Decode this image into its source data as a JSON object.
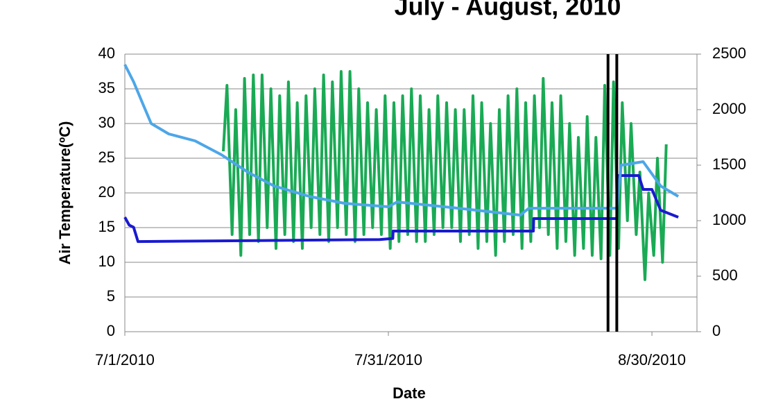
{
  "chart_data": {
    "type": "line",
    "title": "July - August, 2010",
    "xlabel": "Date",
    "ylabel": "Air Temperature(ºC)",
    "xlim": [
      "2010-07-01T00:00",
      "2010-09-04T03:00"
    ],
    "xticks": [
      {
        "value": "2010-07-01T00:00",
        "label": "7/1/2010"
      },
      {
        "value": "2010-07-31T00:00",
        "label": "7/31/2010"
      },
      {
        "value": "2010-08-30T00:00",
        "label": "8/30/2010"
      }
    ],
    "ylim": [
      0,
      40
    ],
    "yticks": [
      0,
      5,
      10,
      15,
      20,
      25,
      30,
      35,
      40
    ],
    "y2lim": [
      0,
      2500
    ],
    "y2ticks": [
      0,
      500,
      1000,
      1500,
      2000,
      2500
    ],
    "grid": true,
    "vlines": {
      "color": "#000000",
      "x": [
        "2010-08-25T00:00",
        "2010-08-26T00:00"
      ]
    },
    "series": [
      {
        "color": "#1aaa55",
        "axis": "y",
        "x": [
          "2010-07-12T05:00",
          "2010-07-12T15:00",
          "2010-07-13T05:00",
          "2010-07-13T15:00",
          "2010-07-14T05:00",
          "2010-07-14T15:00",
          "2010-07-15T05:00",
          "2010-07-15T15:00",
          "2010-07-16T05:00",
          "2010-07-16T15:00",
          "2010-07-17T05:00",
          "2010-07-17T15:00",
          "2010-07-18T05:00",
          "2010-07-18T15:00",
          "2010-07-19T05:00",
          "2010-07-19T15:00",
          "2010-07-20T05:00",
          "2010-07-20T15:00",
          "2010-07-21T05:00",
          "2010-07-21T15:00",
          "2010-07-22T05:00",
          "2010-07-22T15:00",
          "2010-07-23T05:00",
          "2010-07-23T15:00",
          "2010-07-24T05:00",
          "2010-07-24T15:00",
          "2010-07-25T05:00",
          "2010-07-25T15:00",
          "2010-07-26T05:00",
          "2010-07-26T15:00",
          "2010-07-27T05:00",
          "2010-07-27T15:00",
          "2010-07-28T05:00",
          "2010-07-28T15:00",
          "2010-07-29T05:00",
          "2010-07-29T15:00",
          "2010-07-30T05:00",
          "2010-07-30T15:00",
          "2010-07-31T05:00",
          "2010-07-31T15:00",
          "2010-08-01T05:00",
          "2010-08-01T15:00",
          "2010-08-02T05:00",
          "2010-08-02T15:00",
          "2010-08-03T05:00",
          "2010-08-03T15:00",
          "2010-08-04T05:00",
          "2010-08-04T15:00",
          "2010-08-05T05:00",
          "2010-08-05T15:00",
          "2010-08-06T05:00",
          "2010-08-06T15:00",
          "2010-08-07T05:00",
          "2010-08-07T15:00",
          "2010-08-08T05:00",
          "2010-08-08T15:00",
          "2010-08-09T05:00",
          "2010-08-09T15:00",
          "2010-08-10T05:00",
          "2010-08-10T15:00",
          "2010-08-11T05:00",
          "2010-08-11T15:00",
          "2010-08-12T05:00",
          "2010-08-12T15:00",
          "2010-08-13T05:00",
          "2010-08-13T15:00",
          "2010-08-14T05:00",
          "2010-08-14T15:00",
          "2010-08-15T05:00",
          "2010-08-15T15:00",
          "2010-08-16T05:00",
          "2010-08-16T15:00",
          "2010-08-17T05:00",
          "2010-08-17T15:00",
          "2010-08-18T05:00",
          "2010-08-18T15:00",
          "2010-08-19T05:00",
          "2010-08-19T15:00",
          "2010-08-20T05:00",
          "2010-08-20T15:00",
          "2010-08-21T05:00",
          "2010-08-21T15:00",
          "2010-08-22T05:00",
          "2010-08-22T15:00",
          "2010-08-23T05:00",
          "2010-08-23T15:00",
          "2010-08-24T05:00",
          "2010-08-24T15:00",
          "2010-08-25T05:00",
          "2010-08-25T15:00",
          "2010-08-26T05:00",
          "2010-08-26T15:00",
          "2010-08-27T05:00",
          "2010-08-27T15:00",
          "2010-08-28T05:00",
          "2010-08-28T15:00",
          "2010-08-29T05:00",
          "2010-08-29T15:00",
          "2010-08-30T05:00",
          "2010-08-30T15:00",
          "2010-08-31T05:00",
          "2010-08-31T15:00"
        ],
        "values": [
          26,
          35.5,
          14,
          32,
          11,
          36.5,
          14,
          37,
          13,
          37,
          15,
          35,
          12,
          34,
          14,
          36,
          13,
          33,
          12,
          34,
          15,
          35,
          14,
          37,
          13,
          36,
          15,
          37.5,
          14,
          37.5,
          13,
          35,
          14,
          33,
          15,
          32,
          14,
          34,
          12,
          33,
          13,
          34,
          14,
          35,
          13,
          34,
          13,
          32,
          14,
          34,
          15,
          33,
          15,
          32,
          13,
          32,
          14,
          34,
          12,
          33,
          13,
          30,
          11,
          32,
          13,
          34,
          14,
          35,
          12,
          33,
          13,
          34,
          15,
          36.5,
          14,
          33,
          12,
          34,
          13,
          30,
          11,
          28,
          12,
          31,
          11,
          28,
          10.5,
          35.5,
          11,
          36,
          12,
          33,
          16,
          30,
          14,
          23,
          7.5,
          20,
          11,
          25,
          10,
          27
        ]
      },
      {
        "color": "#1a1ad0",
        "axis": "y2",
        "x": [
          "2010-07-01T00:00",
          "2010-07-01T12:00",
          "2010-07-02T00:00",
          "2010-07-02T12:00",
          "2010-07-30T00:00",
          "2010-07-31T12:00",
          "2010-07-31T13:00",
          "2010-08-16T12:00",
          "2010-08-16T13:00",
          "2010-08-26T00:00",
          "2010-08-26T02:00",
          "2010-08-28T12:00",
          "2010-08-29T00:00",
          "2010-08-30T00:00",
          "2010-08-31T00:00",
          "2010-09-02T00:00"
        ],
        "values": [
          1031,
          960,
          940,
          812,
          830,
          840,
          906,
          906,
          1019,
          1019,
          1406,
          1406,
          1281,
          1281,
          1094,
          1031
        ]
      },
      {
        "color": "#4da6e8",
        "axis": "y2",
        "x": [
          "2010-07-01T00:00",
          "2010-07-02T00:00",
          "2010-07-03T00:00",
          "2010-07-04T00:00",
          "2010-07-06T00:00",
          "2010-07-09T00:00",
          "2010-07-12T00:00",
          "2010-07-15T00:00",
          "2010-07-18T00:00",
          "2010-07-22T00:00",
          "2010-07-26T00:00",
          "2010-07-31T00:00",
          "2010-08-01T00:00",
          "2010-08-08T00:00",
          "2010-08-15T00:00",
          "2010-08-16T00:00",
          "2010-08-26T00:00",
          "2010-08-26T12:00",
          "2010-08-29T00:00",
          "2010-08-31T00:00",
          "2010-09-02T00:00"
        ],
        "values": [
          2406,
          2250,
          2062,
          1875,
          1781,
          1719,
          1594,
          1437,
          1312,
          1219,
          1156,
          1125,
          1169,
          1112,
          1050,
          1112,
          1112,
          1500,
          1531,
          1312,
          1219
        ]
      }
    ]
  }
}
